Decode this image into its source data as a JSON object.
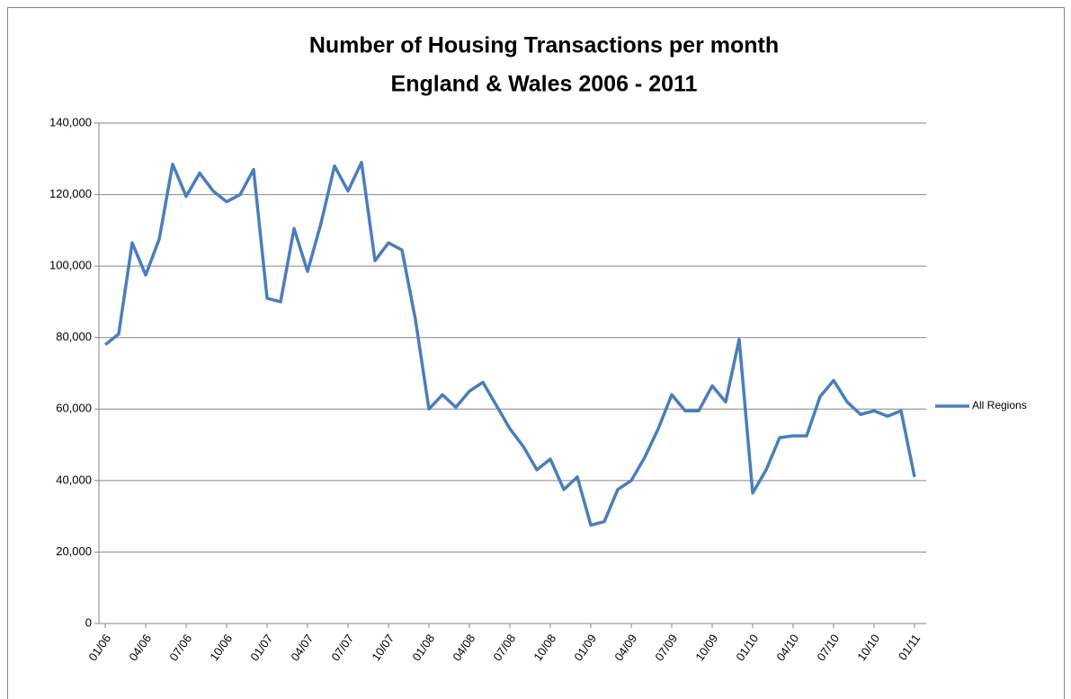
{
  "chart_data": {
    "type": "line",
    "title": "Number of Housing Transactions per month",
    "subtitle": "England & Wales 2006 - 2011",
    "categories": [
      "01/06",
      null,
      null,
      "04/06",
      null,
      null,
      "07/06",
      null,
      null,
      "10/06",
      null,
      null,
      "01/07",
      null,
      null,
      "04/07",
      null,
      null,
      "07/07",
      null,
      null,
      "10/07",
      null,
      null,
      "01/08",
      null,
      null,
      "04/08",
      null,
      null,
      "07/08",
      null,
      null,
      "10/08",
      null,
      null,
      "01/09",
      null,
      null,
      "04/09",
      null,
      null,
      "07/09",
      null,
      null,
      "10/09",
      null,
      null,
      "01/10",
      null,
      null,
      "04/10",
      null,
      null,
      "07/10",
      null,
      null,
      "10/10",
      null,
      null,
      "01/11"
    ],
    "series": [
      {
        "name": "All Regions",
        "color": "#4a7ebb",
        "values": [
          78000,
          81000,
          106500,
          97500,
          107500,
          128500,
          119500,
          126000,
          121000,
          118000,
          120000,
          127000,
          91000,
          90000,
          110500,
          98500,
          112000,
          128000,
          121000,
          129000,
          101500,
          106500,
          104500,
          85000,
          60000,
          64000,
          60500,
          65000,
          67500,
          61000,
          54500,
          49500,
          43000,
          46000,
          37500,
          41000,
          27500,
          28500,
          37500,
          40000,
          46500,
          54500,
          64000,
          59500,
          59500,
          66500,
          62000,
          79500,
          36500,
          43000,
          52000,
          52500,
          52500,
          63500,
          68000,
          62000,
          58500,
          59500,
          58000,
          59500,
          41000
        ]
      }
    ],
    "ylim": [
      0,
      140000
    ],
    "yticks": [
      0,
      {
        "value": 20000,
        "label": "20,000"
      },
      {
        "value": 40000,
        "label": "40,000"
      },
      {
        "value": 60000,
        "label": "60,000"
      },
      {
        "value": 80000,
        "label": "80,000"
      },
      {
        "value": 100000,
        "label": "100,000"
      },
      {
        "value": 120000,
        "label": "120,000"
      },
      {
        "value": 140000,
        "label": "140,000"
      }
    ],
    "grid": true,
    "legend": "right"
  }
}
